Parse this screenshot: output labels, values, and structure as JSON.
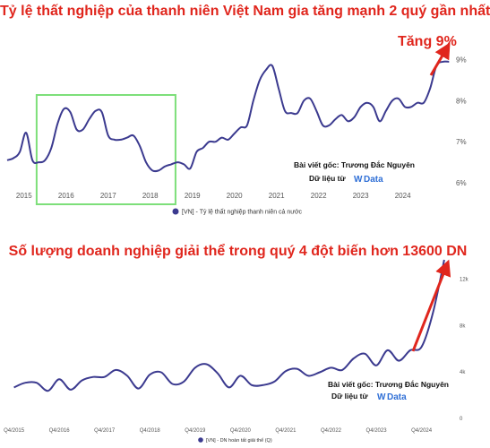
{
  "colors": {
    "line": "#3b3a8f",
    "accent": "#e0261d",
    "highlight": "#7ddf7a",
    "grid": "#eeeeee"
  },
  "chart_data": [
    {
      "type": "line",
      "title": "Tỷ lệ thất nghiệp của thanh niên Việt Nam gia tăng mạnh 2 quý gần nhất",
      "annotation": "Tăng 9%",
      "credit": {
        "line1": "Bài viết gốc: Trương Đắc Nguyên",
        "line2": "Dữ liệu từ",
        "brand_mark": "W",
        "brand_word": "Data"
      },
      "xlabels": [
        "2015",
        "2016",
        "2017",
        "2018",
        "2019",
        "2020",
        "2021",
        "2022",
        "2023",
        "2024"
      ],
      "ylabels": [
        "9%",
        "8%",
        "7%",
        "6%"
      ],
      "yticks": [
        9,
        8,
        7,
        6
      ],
      "xlim": [
        2014.6,
        2025.2
      ],
      "ylim": [
        6.0,
        9.1
      ],
      "grid": false,
      "legend": {
        "position": "bottom",
        "label": "[VN] - Tỷ lệ thất nghiệp thanh niên cả nước"
      },
      "highlight_range": [
        2015.3,
        2018.6
      ],
      "series": [
        {
          "name": "[VN] - Tỷ lệ thất nghiệp thanh niên cả nước",
          "x": [
            2014.6,
            2014.75,
            2014.9,
            2015.05,
            2015.2,
            2015.35,
            2015.5,
            2015.65,
            2015.8,
            2015.95,
            2016.1,
            2016.25,
            2016.4,
            2016.55,
            2016.7,
            2016.85,
            2017.0,
            2017.15,
            2017.3,
            2017.45,
            2017.6,
            2017.75,
            2017.9,
            2018.05,
            2018.2,
            2018.35,
            2018.5,
            2018.65,
            2018.8,
            2018.95,
            2019.1,
            2019.25,
            2019.4,
            2019.55,
            2019.7,
            2019.85,
            2020.0,
            2020.15,
            2020.3,
            2020.45,
            2020.6,
            2020.75,
            2020.9,
            2021.05,
            2021.2,
            2021.35,
            2021.5,
            2021.65,
            2021.8,
            2021.95,
            2022.1,
            2022.25,
            2022.4,
            2022.55,
            2022.7,
            2022.85,
            2023.0,
            2023.15,
            2023.3,
            2023.45,
            2023.6,
            2023.75,
            2023.9,
            2024.05,
            2024.2,
            2024.35,
            2024.5,
            2024.65,
            2024.8,
            2024.95,
            2025.1
          ],
          "values": [
            6.55,
            6.6,
            6.75,
            7.22,
            6.55,
            6.5,
            6.55,
            6.85,
            7.45,
            7.8,
            7.72,
            7.3,
            7.3,
            7.55,
            7.75,
            7.72,
            7.15,
            7.05,
            7.05,
            7.1,
            7.15,
            6.9,
            6.5,
            6.3,
            6.3,
            6.4,
            6.45,
            6.5,
            6.45,
            6.35,
            6.75,
            6.85,
            7.0,
            7.0,
            7.1,
            7.05,
            7.2,
            7.35,
            7.4,
            8.0,
            8.5,
            8.75,
            8.85,
            8.3,
            7.75,
            7.7,
            7.7,
            8.0,
            8.05,
            7.75,
            7.4,
            7.4,
            7.55,
            7.65,
            7.5,
            7.6,
            7.85,
            7.95,
            7.85,
            7.5,
            7.75,
            8.0,
            8.05,
            7.85,
            7.85,
            7.95,
            7.95,
            8.3,
            8.85,
            8.95,
            8.95
          ]
        }
      ]
    },
    {
      "type": "line",
      "title": "Số lượng doanh nghiệp giải thể trong quý 4 đột biến hơn 13600 DN",
      "credit": {
        "line1": "Bài viết gốc: Trương Đắc Nguyên",
        "line2": "Dữ liệu từ",
        "brand_mark": "W",
        "brand_word": "Data"
      },
      "xlabels": [
        "Q4/2015",
        "Q4/2016",
        "Q4/2017",
        "Q4/2018",
        "Q4/2019",
        "Q4/2020",
        "Q4/2021",
        "Q4/2022",
        "Q4/2023",
        "Q4/2024"
      ],
      "ylabels": [
        "12k",
        "8k",
        "4k",
        "0"
      ],
      "yticks": [
        12000,
        8000,
        4000,
        0
      ],
      "xlim": [
        2015.6,
        2025.45
      ],
      "ylim": [
        0,
        13600
      ],
      "grid": false,
      "legend": {
        "position": "bottom",
        "label": "[VN] - DN hoàn tất giải thể (Q)"
      },
      "series": [
        {
          "name": "[VN] - DN hoàn tất giải thể (Q)",
          "x": [
            2015.75,
            2016.0,
            2016.25,
            2016.5,
            2016.75,
            2017.0,
            2017.25,
            2017.5,
            2017.75,
            2018.0,
            2018.25,
            2018.5,
            2018.75,
            2019.0,
            2019.25,
            2019.5,
            2019.75,
            2020.0,
            2020.25,
            2020.5,
            2020.75,
            2021.0,
            2021.25,
            2021.5,
            2021.75,
            2022.0,
            2022.25,
            2022.5,
            2022.75,
            2023.0,
            2023.25,
            2023.5,
            2023.75,
            2024.0,
            2024.25,
            2024.5,
            2024.75,
            2025.0,
            2025.25
          ],
          "values": [
            2600,
            3000,
            3000,
            2300,
            3300,
            2400,
            3200,
            3500,
            3500,
            4100,
            3600,
            2500,
            3700,
            3900,
            2900,
            3100,
            4300,
            4600,
            3800,
            2600,
            3600,
            2800,
            2800,
            3100,
            4000,
            4200,
            3600,
            3900,
            4300,
            4100,
            5100,
            5500,
            4500,
            5800,
            4900,
            5800,
            6100,
            9000,
            13600
          ]
        }
      ]
    }
  ]
}
